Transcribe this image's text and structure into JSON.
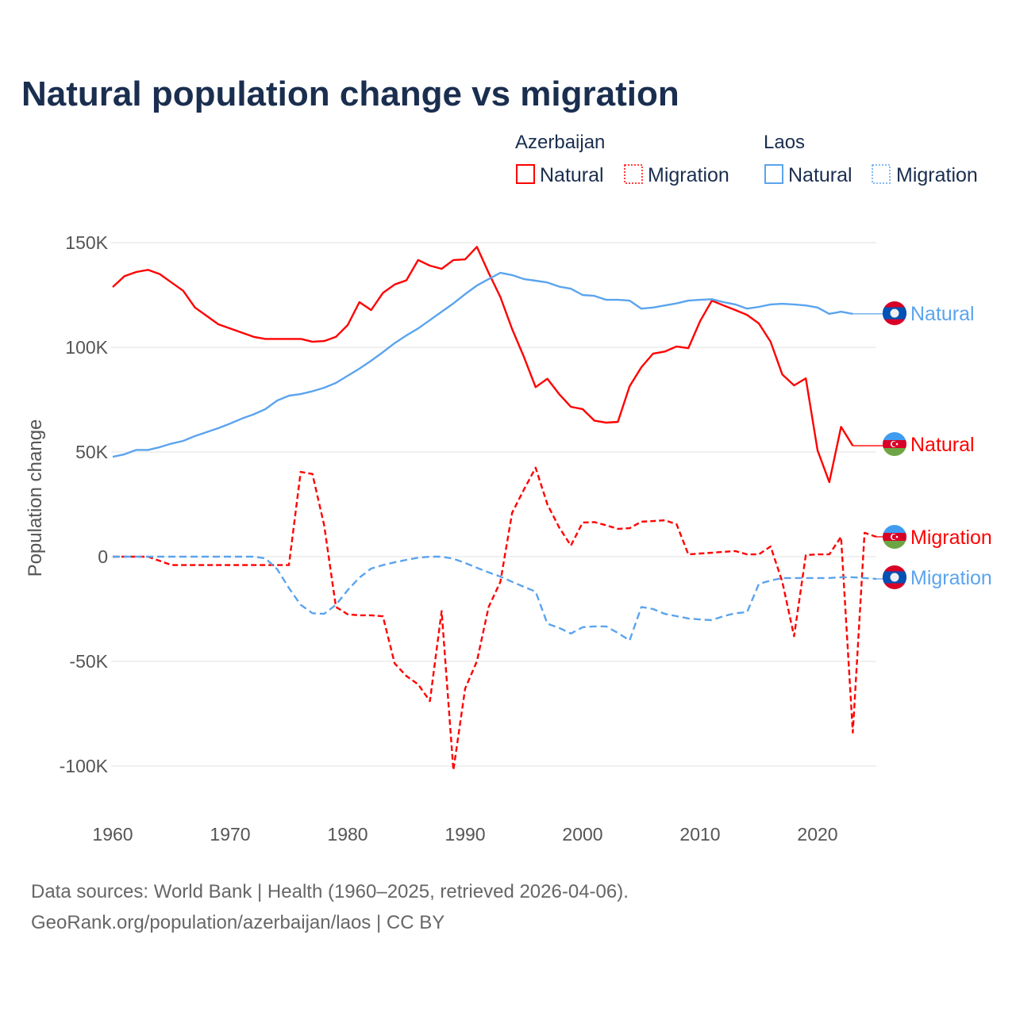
{
  "chart_data": {
    "type": "line",
    "title": "Natural population change vs migration",
    "xlabel": "",
    "ylabel": "Population change",
    "xlim": [
      1960,
      2025
    ],
    "ylim": [
      -120000,
      160000
    ],
    "x_ticks": [
      1960,
      1970,
      1980,
      1990,
      2000,
      2010,
      2020
    ],
    "x_tick_labels": [
      "1960",
      "1970",
      "1980",
      "1990",
      "2000",
      "2010",
      "2020"
    ],
    "y_ticks": [
      150000,
      100000,
      50000,
      0,
      -50000,
      -100000
    ],
    "y_tick_labels": [
      "150K",
      "100K",
      "50K",
      "0",
      "-50K",
      "-100K"
    ],
    "grid": true,
    "legend_position": "top-right",
    "legend_groups": [
      {
        "label": "Azerbaijan",
        "items": [
          "Natural",
          "Migration"
        ]
      },
      {
        "label": "Laos",
        "items": [
          "Natural",
          "Migration"
        ]
      }
    ],
    "x_start": 1960,
    "series": [
      {
        "name": "Azerbaijan Natural",
        "country": "Azerbaijan",
        "kind": "Natural",
        "end_label": "Natural",
        "color": "#ff0000",
        "dashed": false,
        "flag": "azerbaijan-flag",
        "values": [
          128800,
          134000,
          136000,
          137000,
          135000,
          131000,
          127000,
          119000,
          115000,
          111000,
          109000,
          107000,
          105000,
          104000,
          104000,
          104000,
          104000,
          102700,
          103000,
          105000,
          110600,
          121600,
          117800,
          126000,
          130000,
          132000,
          141700,
          139000,
          137500,
          141700,
          142000,
          148000,
          135600,
          124000,
          108700,
          95500,
          81000,
          85000,
          77700,
          71600,
          70500,
          65000,
          64000,
          64400,
          81400,
          90500,
          97000,
          98000,
          100400,
          99600,
          112500,
          122300,
          120000,
          117800,
          115500,
          111400,
          102700,
          87000,
          81800,
          85200,
          50800,
          35600,
          62000,
          53000
        ]
      },
      {
        "name": "Azerbaijan Migration",
        "country": "Azerbaijan",
        "kind": "Migration",
        "end_label": "Migration",
        "color": "#ff0000",
        "dashed": true,
        "flag": "azerbaijan-flag",
        "values": [
          0,
          0,
          0,
          0,
          -2000,
          -4000,
          -4000,
          -4000,
          -4000,
          -4000,
          -4000,
          -4000,
          -4000,
          -4000,
          -4000,
          -4000,
          40500,
          39500,
          15000,
          -24000,
          -27500,
          -28000,
          -28000,
          -28500,
          -51000,
          -57000,
          -61000,
          -69000,
          -26000,
          -102000,
          -63000,
          -50000,
          -24000,
          -12000,
          21000,
          32000,
          42500,
          25000,
          14000,
          5300,
          16300,
          16500,
          15000,
          13300,
          13600,
          16700,
          17000,
          17400,
          15500,
          1100,
          1500,
          1900,
          2300,
          2700,
          1100,
          1100,
          4900,
          -12000,
          -38000,
          800,
          1100,
          1100,
          9500,
          -84000,
          11400,
          9500
        ]
      },
      {
        "name": "Laos Natural",
        "country": "Laos",
        "kind": "Natural",
        "end_label": "Natural",
        "color": "#5ba4ee",
        "dashed": false,
        "flag": "laos-flag",
        "values": [
          47700,
          48900,
          51000,
          51000,
          52300,
          54000,
          55300,
          57600,
          59500,
          61400,
          63600,
          66000,
          68000,
          70500,
          74600,
          76900,
          77700,
          79000,
          80700,
          83000,
          86400,
          89800,
          93600,
          97700,
          102000,
          105700,
          109000,
          113000,
          117000,
          121000,
          125400,
          129500,
          132600,
          135600,
          134500,
          132600,
          131800,
          131000,
          129000,
          128000,
          125000,
          124600,
          122700,
          122700,
          122300,
          118500,
          119000,
          120000,
          121000,
          122300,
          122700,
          123000,
          121600,
          120500,
          118500,
          119300,
          120500,
          120800,
          120500,
          120000,
          119000,
          116000,
          117000,
          116000
        ]
      },
      {
        "name": "Laos Migration",
        "country": "Laos",
        "kind": "Migration",
        "end_label": "Migration",
        "color": "#5ba4ee",
        "dashed": true,
        "flag": "laos-flag",
        "values": [
          0,
          0,
          0,
          0,
          0,
          0,
          0,
          0,
          0,
          0,
          0,
          0,
          0,
          -800,
          -6000,
          -15000,
          -23000,
          -27000,
          -27300,
          -23000,
          -16000,
          -10000,
          -5700,
          -4000,
          -2700,
          -1500,
          -500,
          0,
          0,
          -1000,
          -3000,
          -5300,
          -7500,
          -9500,
          -12000,
          -14400,
          -16700,
          -32000,
          -34000,
          -36700,
          -33700,
          -33300,
          -33300,
          -36400,
          -40000,
          -24000,
          -25000,
          -27300,
          -28400,
          -29500,
          -30000,
          -30300,
          -28400,
          -27000,
          -26500,
          -13000,
          -11400,
          -10200,
          -10200,
          -10200,
          -10200,
          -10200,
          -9800,
          -9800,
          -10200,
          -10600
        ]
      }
    ],
    "source_line_1": "Data sources: World Bank | Health (1960–2025, retrieved 2026-04-06).",
    "source_line_2": "GeoRank.org/population/azerbaijan/laos | CC BY"
  }
}
